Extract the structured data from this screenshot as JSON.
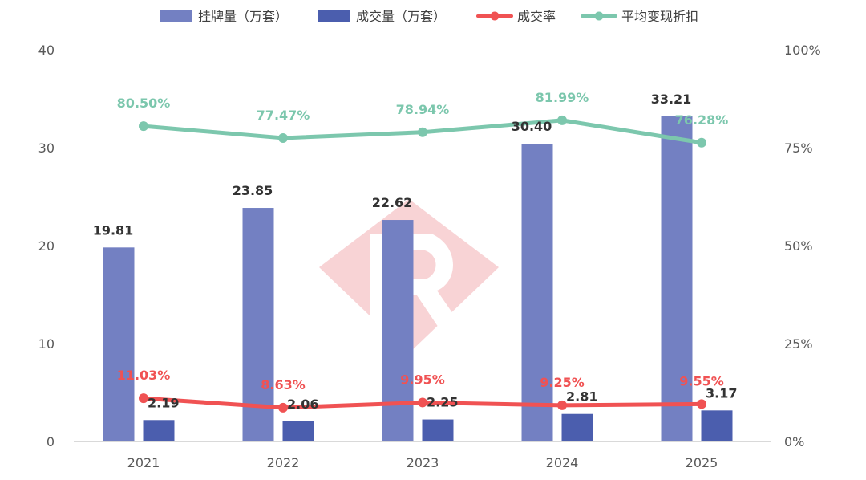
{
  "chart_data": {
    "type": "bar",
    "categories": [
      "2021",
      "2022",
      "2023",
      "2024",
      "2025"
    ],
    "series": [
      {
        "name": "挂牌量（万套）",
        "kind": "bar",
        "axis": "left",
        "color": "#7380c2",
        "values": [
          19.81,
          23.85,
          22.62,
          30.4,
          33.21
        ],
        "labels": [
          "19.81",
          "23.85",
          "22.62",
          "30.40",
          "33.21"
        ]
      },
      {
        "name": "成交量（万套）",
        "kind": "bar",
        "axis": "left",
        "color": "#4b5eae",
        "values": [
          2.19,
          2.06,
          2.25,
          2.81,
          3.17
        ],
        "labels": [
          "2.19",
          "2.06",
          "2.25",
          "2.81",
          "3.17"
        ]
      },
      {
        "name": "成交率",
        "kind": "line",
        "axis": "right",
        "color": "#f05253",
        "values": [
          11.03,
          8.63,
          9.95,
          9.25,
          9.55
        ],
        "labels": [
          "11.03%",
          "8.63%",
          "9.95%",
          "9.25%",
          "9.55%"
        ]
      },
      {
        "name": "平均变现折扣",
        "kind": "line",
        "axis": "right",
        "color": "#7cc7ad",
        "values": [
          80.5,
          77.47,
          78.94,
          81.99,
          76.28
        ],
        "labels": [
          "80.50%",
          "77.47%",
          "78.94%",
          "81.99%",
          "76.28%"
        ]
      }
    ],
    "y_left": {
      "min": 0,
      "max": 40,
      "ticks": [
        "0",
        "10",
        "20",
        "30",
        "40"
      ]
    },
    "y_right": {
      "min": 0,
      "max": 100,
      "ticks": [
        "0%",
        "25%",
        "50%",
        "75%",
        "100%"
      ]
    },
    "legend_position": "top",
    "grid": false
  }
}
